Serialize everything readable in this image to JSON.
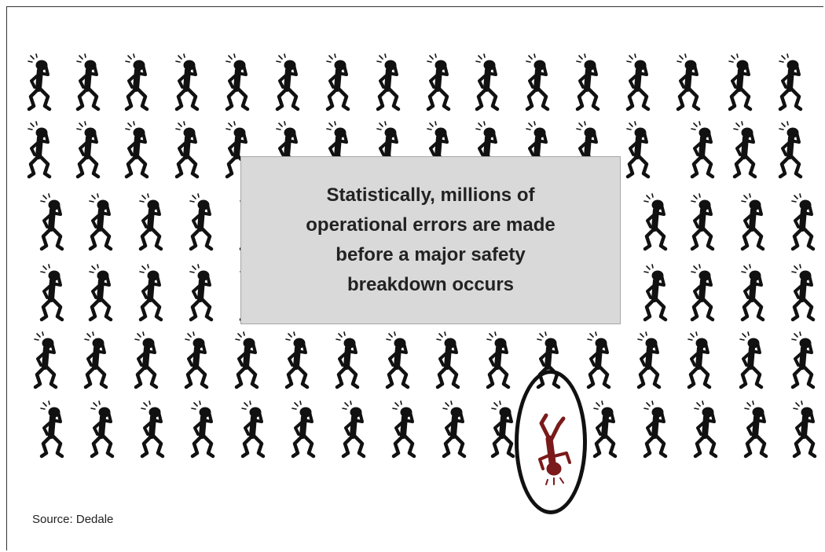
{
  "callout": {
    "text": "Statistically, millions of\noperational errors are made\nbefore a major safety\nbreakdown occurs"
  },
  "source": {
    "label": "Source: Dedale"
  },
  "colors": {
    "figure": "#111111",
    "fallen_figure": "#7a1a1a",
    "callout_bg": "#d9d9d9"
  },
  "icons": {
    "crowd_figure": "scratching-head-figure-icon",
    "fallen_figure": "fallen-figure-icon"
  }
}
